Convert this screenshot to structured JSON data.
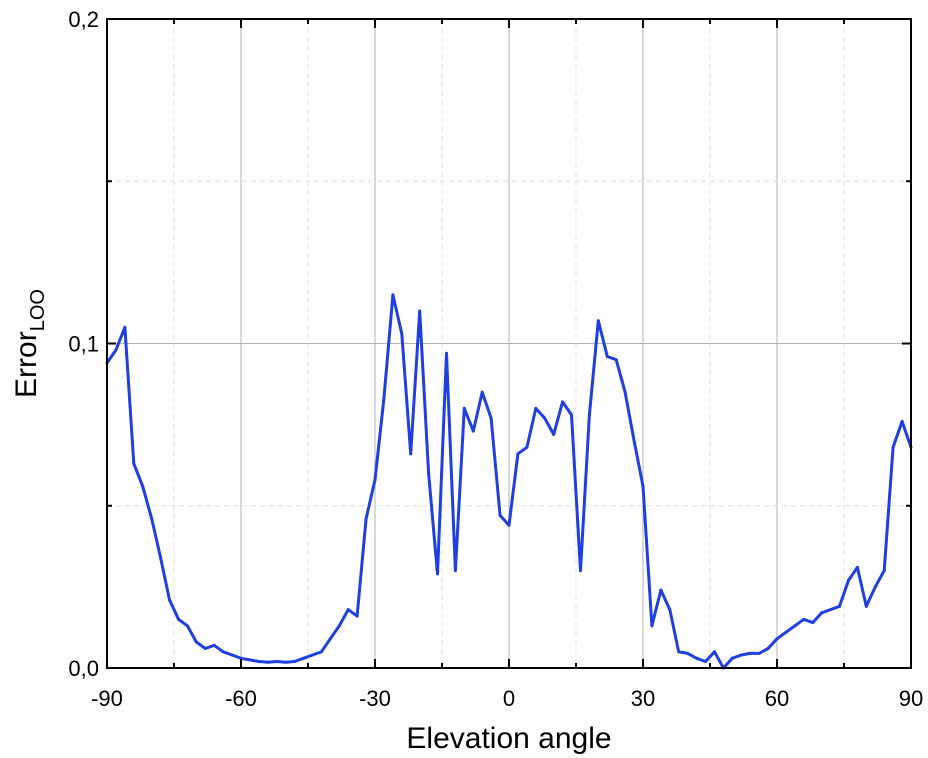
{
  "chart_data": {
    "type": "line",
    "title": "",
    "xlabel": "Elevation angle",
    "ylabel": "Error",
    "ylabel_subscript": "LOO",
    "xlim": [
      -90,
      90
    ],
    "ylim": [
      0,
      0.2
    ],
    "x_ticks": [
      -90,
      -60,
      -30,
      0,
      30,
      60,
      90
    ],
    "x_tick_labels": [
      "-90",
      "-60",
      "-30",
      "0",
      "30",
      "60",
      "90"
    ],
    "y_ticks": [
      0,
      0.1,
      0.2
    ],
    "y_tick_labels": [
      "0,0",
      "0,1",
      "0,2"
    ],
    "grid": true,
    "series": [
      {
        "name": "Error LOO",
        "color": "#1f3fe0",
        "x": [
          -90,
          -88,
          -86,
          -84,
          -82,
          -80,
          -78,
          -76,
          -74,
          -72,
          -70,
          -68,
          -66,
          -64,
          -62,
          -60,
          -58,
          -56,
          -54,
          -52,
          -50,
          -48,
          -46,
          -44,
          -42,
          -40,
          -38,
          -36,
          -34,
          -32,
          -30,
          -28,
          -26,
          -24,
          -22,
          -20,
          -18,
          -16,
          -14,
          -12,
          -10,
          -8,
          -6,
          -4,
          -2,
          0,
          2,
          4,
          6,
          8,
          10,
          12,
          14,
          16,
          18,
          20,
          22,
          24,
          26,
          28,
          30,
          32,
          34,
          36,
          38,
          40,
          42,
          44,
          46,
          48,
          50,
          52,
          54,
          56,
          58,
          60,
          62,
          64,
          66,
          68,
          70,
          72,
          74,
          76,
          78,
          80,
          82,
          84,
          86,
          88,
          90
        ],
        "y": [
          0.094,
          0.098,
          0.105,
          0.063,
          0.056,
          0.046,
          0.034,
          0.021,
          0.015,
          0.013,
          0.008,
          0.006,
          0.007,
          0.005,
          0.004,
          0.003,
          0.0025,
          0.002,
          0.0018,
          0.002,
          0.0018,
          0.002,
          0.003,
          0.004,
          0.005,
          0.009,
          0.013,
          0.018,
          0.016,
          0.046,
          0.058,
          0.083,
          0.115,
          0.103,
          0.066,
          0.11,
          0.06,
          0.029,
          0.097,
          0.03,
          0.08,
          0.073,
          0.085,
          0.077,
          0.047,
          0.044,
          0.066,
          0.068,
          0.08,
          0.077,
          0.072,
          0.082,
          0.078,
          0.03,
          0.078,
          0.107,
          0.096,
          0.095,
          0.085,
          0.07,
          0.056,
          0.013,
          0.024,
          0.018,
          0.005,
          0.0045,
          0.003,
          0.002,
          0.005,
          0.0,
          0.003,
          0.004,
          0.0045,
          0.0045,
          0.006,
          0.009,
          0.011,
          0.013,
          0.015,
          0.014,
          0.017,
          0.018,
          0.019,
          0.027,
          0.031,
          0.019,
          0.025,
          0.03,
          0.068,
          0.076,
          0.068
        ]
      }
    ]
  }
}
